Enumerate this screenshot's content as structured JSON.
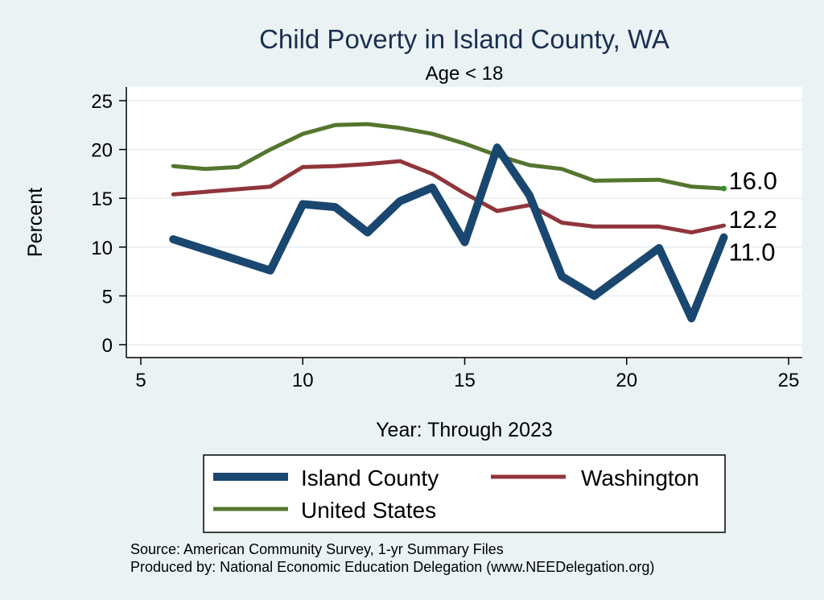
{
  "chart_data": {
    "type": "line",
    "title": "Child Poverty in Island County, WA",
    "subtitle": "Age < 18",
    "xlabel": "Year: Through 2023",
    "ylabel": "Percent",
    "xlim": [
      5,
      25
    ],
    "ylim": [
      0,
      25
    ],
    "xticks": [
      5,
      10,
      15,
      20,
      25
    ],
    "yticks": [
      0,
      5,
      10,
      15,
      20,
      25
    ],
    "grid": true,
    "legend_position": "bottom",
    "series": [
      {
        "name": "Island County",
        "color": "#1a476f",
        "end_label": "11.0",
        "x": [
          6,
          9,
          10,
          11,
          12,
          13,
          14,
          15,
          16,
          17,
          18,
          19,
          21,
          22,
          23
        ],
        "y": [
          10.8,
          7.6,
          14.4,
          14.1,
          11.5,
          14.7,
          16.1,
          10.5,
          20.2,
          15.3,
          7.0,
          5.0,
          9.9,
          2.7,
          11.0
        ]
      },
      {
        "name": "Washington",
        "color": "#90353b",
        "end_label": "12.2",
        "x": [
          6,
          9,
          10,
          11,
          12,
          13,
          14,
          15,
          16,
          17,
          18,
          19,
          21,
          22,
          23
        ],
        "y": [
          15.4,
          16.2,
          18.2,
          18.3,
          18.5,
          18.8,
          17.5,
          15.5,
          13.7,
          14.3,
          12.5,
          12.1,
          12.1,
          11.5,
          12.2
        ]
      },
      {
        "name": "United States",
        "color": "#55752f",
        "end_label": "16.0",
        "x": [
          6,
          7,
          8,
          9,
          10,
          11,
          12,
          13,
          14,
          15,
          16,
          17,
          18,
          19,
          21,
          22,
          23
        ],
        "y": [
          18.3,
          18.0,
          18.2,
          20.0,
          21.6,
          22.5,
          22.6,
          22.2,
          21.6,
          20.6,
          19.4,
          18.4,
          18.0,
          16.8,
          16.9,
          16.2,
          16.0
        ]
      }
    ]
  },
  "footer": {
    "source": "Source: American Community Survey, 1-yr Summary Files",
    "produced_by": "Produced by: National Economic Education Delegation (www.NEEDelegation.org)"
  }
}
